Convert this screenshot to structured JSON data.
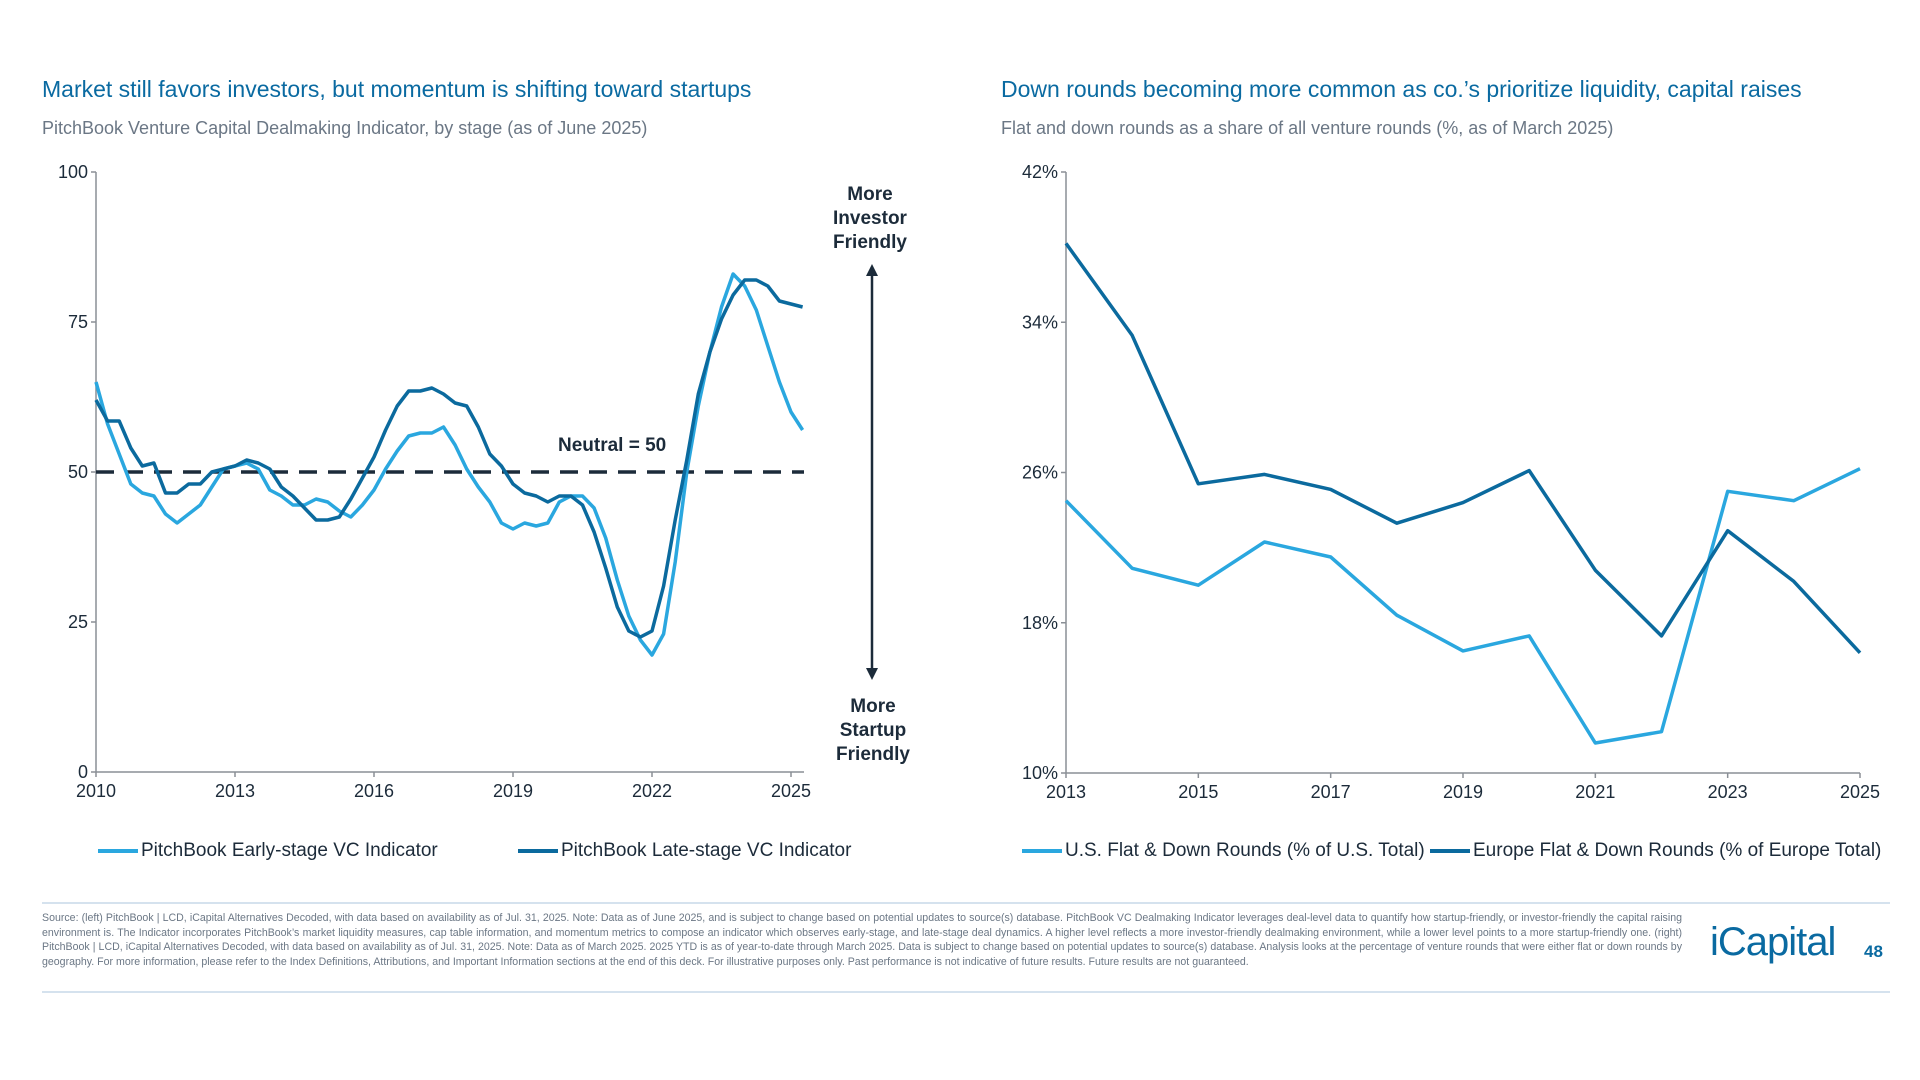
{
  "colors": {
    "title": "#0a6aa1",
    "early_stage": "#2aa7df",
    "late_stage": "#0b6a9e",
    "neutral_line": "#1c2b3a",
    "us": "#2aa7df",
    "europe": "#0b6a9e"
  },
  "left": {
    "title": "Market still favors investors, but momentum is shifting toward startups",
    "subtitle": "PitchBook Venture Capital Dealmaking Indicator, by stage (as of June 2025)",
    "neutral_label": "Neutral = 50",
    "annotation_top": [
      "More",
      "Investor",
      "Friendly"
    ],
    "annotation_bottom": [
      "More",
      "Startup",
      "Friendly"
    ]
  },
  "right": {
    "title": "Down rounds becoming more common as co.’s  prioritize liquidity, capital raises",
    "subtitle": "Flat and down rounds as a share of all venture rounds (%, as of March 2025)"
  },
  "chart_data": [
    {
      "type": "line",
      "title": "Market still favors investors, but momentum is shifting toward startups",
      "xlim": [
        2010,
        2025.25
      ],
      "ylim": [
        0,
        100
      ],
      "x_ticks": [
        "2010",
        "2013",
        "2016",
        "2019",
        "2022",
        "2025"
      ],
      "y_ticks": [
        "0",
        "25",
        "50",
        "75",
        "100"
      ],
      "reference_line": {
        "y": 50,
        "style": "dashed",
        "label": "Neutral = 50"
      },
      "x_start": 2010,
      "x_step": "quarter",
      "legend": "bottom",
      "series": [
        {
          "name": "PitchBook Early-stage VC Indicator",
          "values": [
            65,
            58,
            53,
            48,
            46.5,
            46,
            43,
            41.5,
            43,
            44.5,
            47.5,
            50.5,
            51,
            51.5,
            50.5,
            47,
            46,
            44.5,
            44.5,
            45.5,
            45,
            43.5,
            42.5,
            44.5,
            47,
            50.5,
            53.5,
            56,
            56.5,
            56.5,
            57.5,
            54.5,
            50.5,
            47.5,
            45,
            41.5,
            40.5,
            41.5,
            41,
            41.5,
            45,
            46,
            46,
            44,
            39,
            32,
            26,
            22,
            19.5,
            23,
            35,
            50,
            61,
            70,
            77.5,
            83,
            81,
            77,
            71,
            65,
            60,
            57
          ]
        },
        {
          "name": "PitchBook Late-stage VC Indicator",
          "values": [
            62,
            58.5,
            58.5,
            54,
            51,
            51.5,
            46.5,
            46.5,
            48,
            48,
            50,
            50.5,
            51,
            52,
            51.5,
            50.5,
            47.5,
            46,
            44,
            42,
            42,
            42.5,
            45.5,
            49,
            52.5,
            57,
            61,
            63.5,
            63.5,
            64,
            63,
            61.5,
            61,
            57.5,
            53,
            51,
            48,
            46.5,
            46,
            45,
            46,
            46,
            44.5,
            40,
            34,
            27.5,
            23.5,
            22.5,
            23.5,
            31,
            42,
            52,
            63,
            70,
            75.5,
            79.5,
            82,
            82,
            81,
            78.5,
            78,
            77.5
          ]
        }
      ]
    },
    {
      "type": "line",
      "title": "Down rounds becoming more common as co.’s  prioritize liquidity, capital raises",
      "x": [
        2013,
        2014,
        2015,
        2016,
        2017,
        2018,
        2019,
        2020,
        2021,
        2022,
        2023,
        2024,
        2025
      ],
      "xlim": [
        2013,
        2025
      ],
      "ylim": [
        10,
        42
      ],
      "x_ticks": [
        "2013",
        "2015",
        "2017",
        "2019",
        "2021",
        "2023",
        "2025"
      ],
      "y_ticks": [
        "10%",
        "18%",
        "26%",
        "34%",
        "42%"
      ],
      "legend": "bottom",
      "series": [
        {
          "name": "U.S. Flat & Down Rounds (% of U.S. Total)",
          "values": [
            24.5,
            20.9,
            20.0,
            22.3,
            21.5,
            18.4,
            16.5,
            17.3,
            11.6,
            12.2,
            25.0,
            24.5,
            26.2
          ]
        },
        {
          "name": "Europe Flat & Down Rounds (% of Europe Total)",
          "values": [
            38.2,
            33.3,
            25.4,
            25.9,
            25.1,
            23.3,
            24.4,
            26.1,
            20.8,
            17.3,
            22.9,
            20.2,
            16.4
          ]
        }
      ]
    }
  ],
  "footer": {
    "source": "Source: (left) PitchBook | LCD, iCapital Alternatives Decoded, with data based on availability as of Jul. 31, 2025. Note: Data as of June 2025, and is subject to change based on potential updates to source(s) database. PitchBook VC Dealmaking Indicator leverages deal-level data to quantify how startup-friendly, or investor-friendly the capital raising environment is. The Indicator incorporates PitchBook’s market liquidity measures, cap table information, and momentum metrics to compose an indicator which observes early-stage, and late-stage deal dynamics. A higher level reflects a more investor-friendly dealmaking environment, while a lower level points to a more startup-friendly one. (right) PitchBook | LCD, iCapital Alternatives Decoded, with data based on availability as of Jul. 31, 2025. Note: Data as of March 2025. 2025 YTD is as of year-to-date through March 2025. Data is subject to change based on potential updates to source(s) database. Analysis looks at the percentage of venture rounds that were either flat or down rounds by geography. For more information, please refer to the Index Definitions, Attributions, and Important Information sections at the end of this deck. For illustrative purposes only. Past performance is not indicative of future results. Future results are not guaranteed.",
    "logo": "iCapital",
    "page_number": "48"
  }
}
